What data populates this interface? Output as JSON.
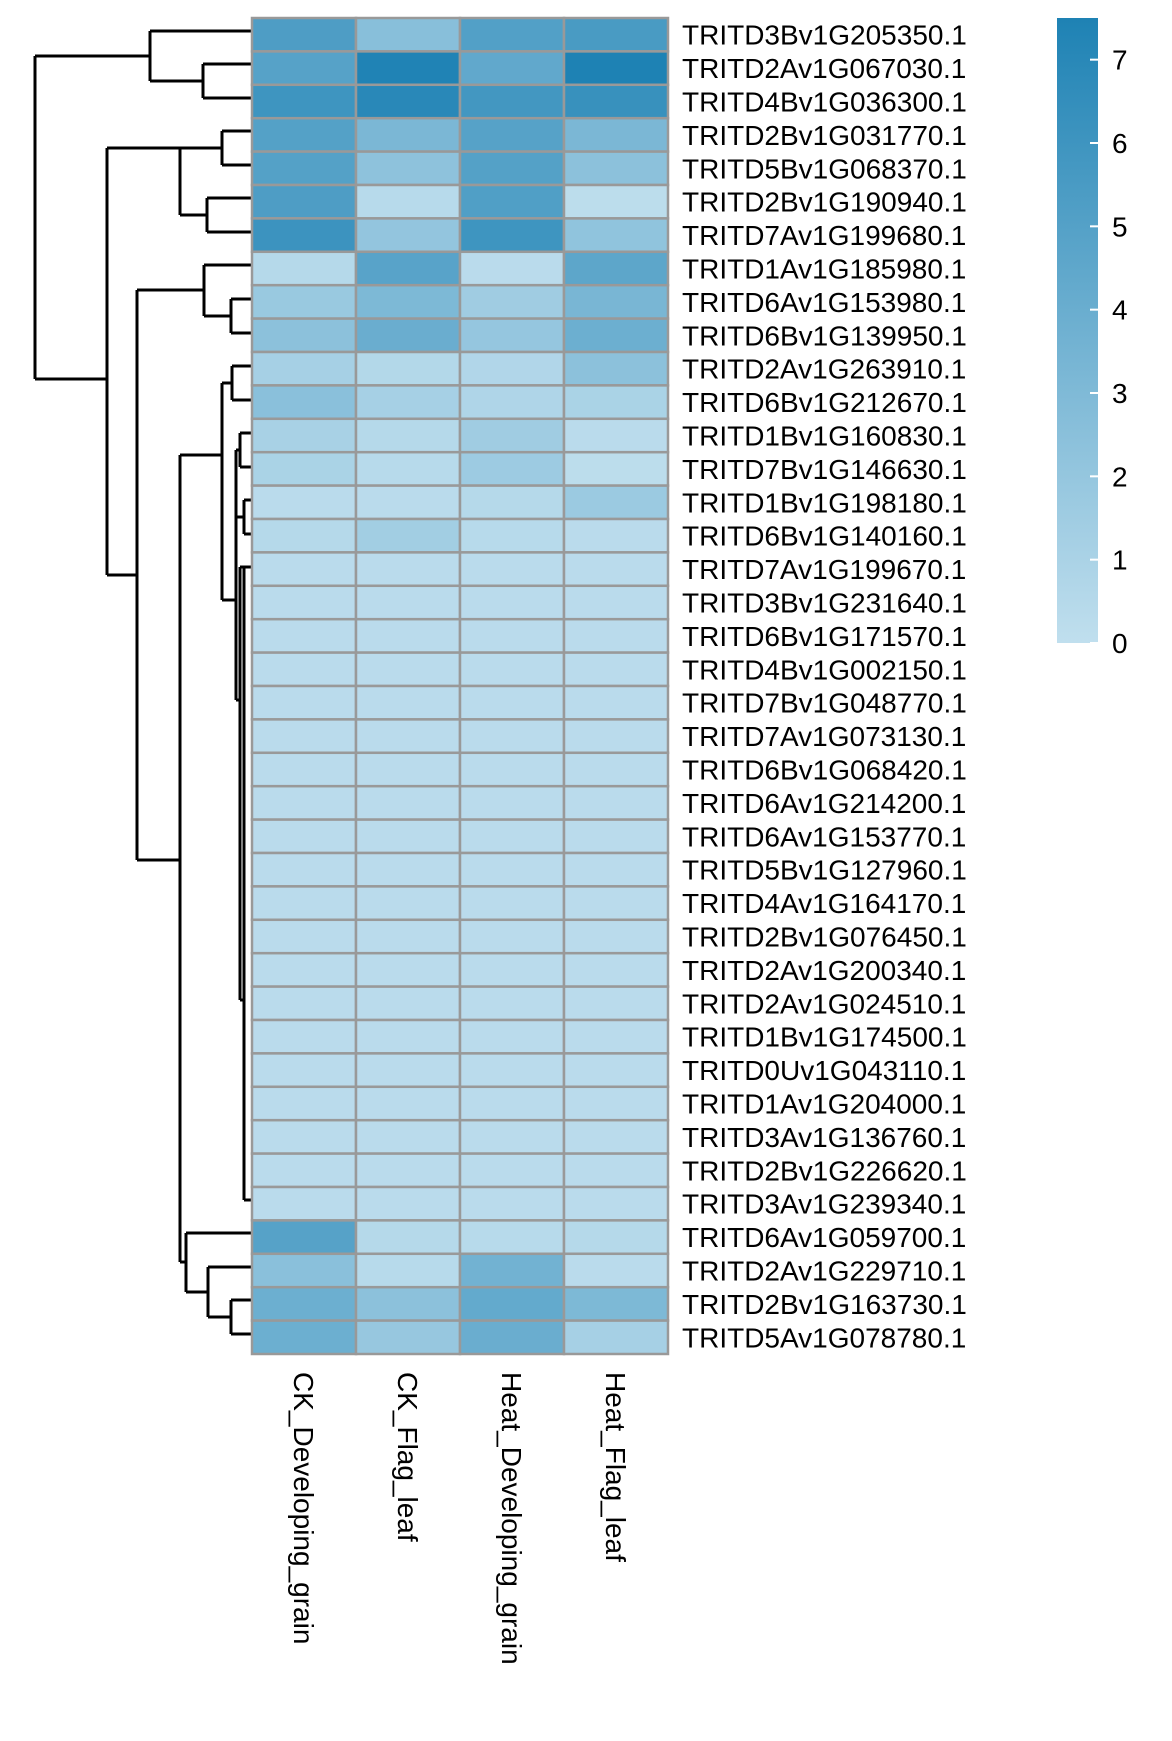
{
  "chart_data": {
    "type": "heatmap",
    "title": "",
    "columns": [
      "CK_Developing_grain",
      "CK_Flag_leaf",
      "Heat_Developing_grain",
      "Heat_Flag_leaf"
    ],
    "rows": [
      "TRITD3Bv1G205350.1",
      "TRITD2Av1G067030.1",
      "TRITD4Bv1G036300.1",
      "TRITD2Bv1G031770.1",
      "TRITD5Bv1G068370.1",
      "TRITD2Bv1G190940.1",
      "TRITD7Av1G199680.1",
      "TRITD1Av1G185980.1",
      "TRITD6Av1G153980.1",
      "TRITD6Bv1G139950.1",
      "TRITD2Av1G263910.1",
      "TRITD6Bv1G212670.1",
      "TRITD1Bv1G160830.1",
      "TRITD7Bv1G146630.1",
      "TRITD1Bv1G198180.1",
      "TRITD6Bv1G140160.1",
      "TRITD7Av1G199670.1",
      "TRITD3Bv1G231640.1",
      "TRITD6Bv1G171570.1",
      "TRITD4Bv1G002150.1",
      "TRITD7Bv1G048770.1",
      "TRITD7Av1G073130.1",
      "TRITD6Bv1G068420.1",
      "TRITD6Av1G214200.1",
      "TRITD6Av1G153770.1",
      "TRITD5Bv1G127960.1",
      "TRITD4Av1G164170.1",
      "TRITD2Bv1G076450.1",
      "TRITD2Av1G200340.1",
      "TRITD2Av1G024510.1",
      "TRITD1Bv1G174500.1",
      "TRITD0Uv1G043110.1",
      "TRITD1Av1G204000.1",
      "TRITD3Av1G136760.1",
      "TRITD2Bv1G226620.1",
      "TRITD3Av1G239340.1",
      "TRITD6Av1G059700.1",
      "TRITD2Av1G229710.1",
      "TRITD2Bv1G163730.1",
      "TRITD5Av1G078780.1"
    ],
    "values": [
      [
        5.3,
        2.6,
        5.1,
        5.5
      ],
      [
        4.9,
        7.4,
        4.4,
        7.5
      ],
      [
        6.0,
        7.0,
        5.8,
        6.3
      ],
      [
        5.0,
        3.2,
        4.9,
        3.2
      ],
      [
        5.0,
        2.3,
        5.0,
        2.4
      ],
      [
        5.3,
        0.4,
        5.2,
        0.2
      ],
      [
        6.1,
        2.1,
        6.0,
        2.2
      ],
      [
        0.5,
        4.8,
        0.3,
        4.6
      ],
      [
        1.8,
        3.1,
        1.5,
        3.3
      ],
      [
        2.4,
        4.0,
        2.0,
        3.9
      ],
      [
        1.2,
        0.6,
        0.7,
        2.4
      ],
      [
        2.5,
        1.2,
        0.8,
        1.0
      ],
      [
        1.1,
        0.5,
        1.5,
        0.3
      ],
      [
        1.0,
        0.4,
        1.6,
        0.2
      ],
      [
        0.3,
        0.3,
        0.5,
        1.7
      ],
      [
        0.5,
        1.4,
        0.4,
        0.3
      ],
      [
        0.3,
        0.3,
        0.3,
        0.3
      ],
      [
        0.3,
        0.3,
        0.3,
        0.3
      ],
      [
        0.3,
        0.3,
        0.3,
        0.3
      ],
      [
        0.3,
        0.3,
        0.3,
        0.3
      ],
      [
        0.3,
        0.3,
        0.3,
        0.3
      ],
      [
        0.3,
        0.3,
        0.3,
        0.3
      ],
      [
        0.3,
        0.3,
        0.3,
        0.3
      ],
      [
        0.3,
        0.3,
        0.3,
        0.3
      ],
      [
        0.3,
        0.3,
        0.3,
        0.3
      ],
      [
        0.3,
        0.3,
        0.3,
        0.3
      ],
      [
        0.3,
        0.3,
        0.3,
        0.3
      ],
      [
        0.3,
        0.3,
        0.3,
        0.3
      ],
      [
        0.3,
        0.3,
        0.3,
        0.3
      ],
      [
        0.3,
        0.3,
        0.3,
        0.3
      ],
      [
        0.3,
        0.3,
        0.3,
        0.3
      ],
      [
        0.3,
        0.3,
        0.3,
        0.3
      ],
      [
        0.3,
        0.3,
        0.3,
        0.3
      ],
      [
        0.3,
        0.3,
        0.3,
        0.3
      ],
      [
        0.3,
        0.3,
        0.3,
        0.3
      ],
      [
        0.3,
        0.3,
        0.3,
        0.3
      ],
      [
        4.9,
        0.5,
        0.4,
        0.5
      ],
      [
        2.5,
        0.4,
        3.6,
        0.3
      ],
      [
        3.9,
        2.4,
        4.3,
        3.1
      ],
      [
        3.9,
        1.9,
        4.0,
        1.2
      ]
    ],
    "color_scale": {
      "min": 0,
      "max": 7.5,
      "low_color": "#c0dfee",
      "high_color": "#1e82b4",
      "ticks": [
        0,
        1,
        2,
        3,
        4,
        5,
        6,
        7
      ]
    },
    "cell_border_color": "#999999",
    "legend_position": "right",
    "row_dendrogram": "left"
  }
}
